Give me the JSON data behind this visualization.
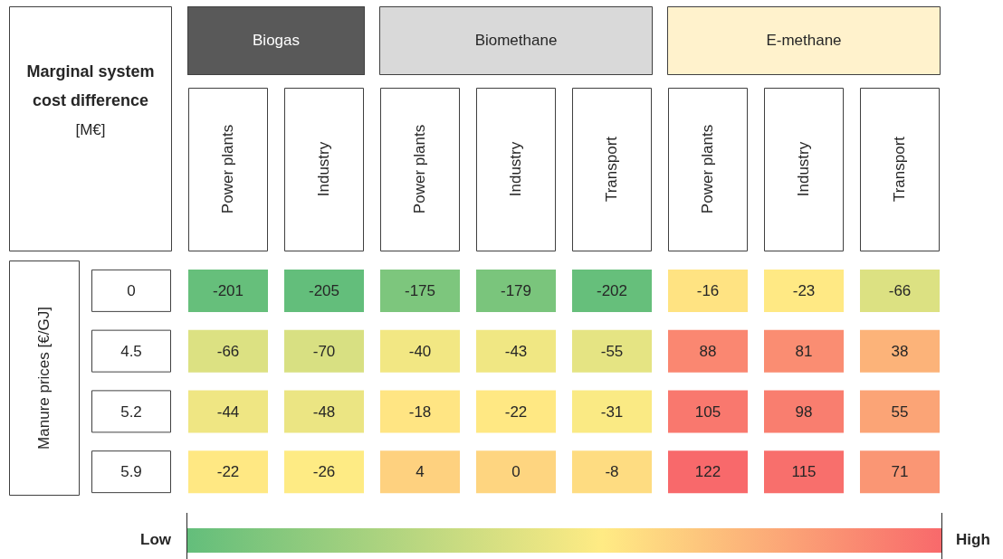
{
  "chart_data": [
    {
      "type": "heatmap",
      "title": "Biogas",
      "color": "#595959",
      "clabel": "Marginal system cost difference [M€]",
      "ylabel": "Manure prices [€/GJ]",
      "categories": [
        "Power plants",
        "Industry"
      ],
      "y_categories": [
        "0",
        "4.5",
        "5.2",
        "5.9"
      ],
      "cells": [
        [
          -201,
          -205
        ],
        [
          -66,
          -70
        ],
        [
          -44,
          -48
        ],
        [
          -22,
          -26
        ]
      ],
      "data_labels": true,
      "annotations": [
        "Low",
        "High"
      ]
    },
    {
      "type": "heatmap",
      "title": "Biomethane",
      "color": "#d9d9d9",
      "categories": [
        "Power plants",
        "Industry",
        "Transport"
      ],
      "y_categories": [
        "0",
        "4.5",
        "5.2",
        "5.9"
      ],
      "cells": [
        [
          -175,
          -179,
          -202
        ],
        [
          -40,
          -43,
          -55
        ],
        [
          -18,
          -22,
          -31
        ],
        [
          4,
          0,
          -8
        ]
      ],
      "data_labels": true,
      "tick_labels": "x"
    },
    {
      "type": "heatmap",
      "title": "E-methane",
      "color": "#fff2cc",
      "categories": [
        "Power plants",
        "Industry",
        "Transport"
      ],
      "y_categories": [
        "0",
        "4.5",
        "5.2",
        "5.9"
      ],
      "cells": [
        [
          -16,
          -23,
          -66
        ],
        [
          88,
          81,
          38
        ],
        [
          105,
          98,
          55
        ],
        [
          122,
          115,
          71
        ]
      ],
      "data_labels": true,
      "tick_labels": "x"
    }
  ]
}
